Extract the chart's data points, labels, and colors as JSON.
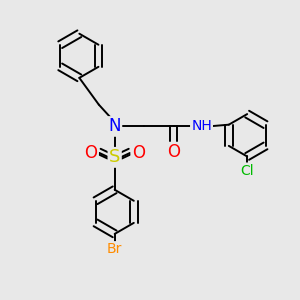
{
  "bg_color": "#e8e8e8",
  "bond_color": "#000000",
  "bond_width": 1.4,
  "atom_colors": {
    "N": "#0000ff",
    "O": "#ff0000",
    "S": "#cccc00",
    "Br": "#ff8c00",
    "Cl": "#00bb00",
    "H": "#008080",
    "C": "#000000"
  },
  "xlim": [
    0,
    10
  ],
  "ylim": [
    0,
    10
  ],
  "figsize": [
    3.0,
    3.0
  ],
  "dpi": 100
}
